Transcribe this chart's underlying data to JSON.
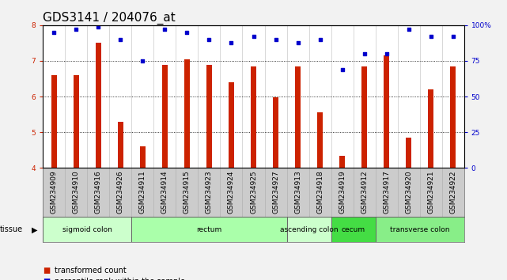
{
  "title": "GDS3141 / 204076_at",
  "samples": [
    "GSM234909",
    "GSM234910",
    "GSM234916",
    "GSM234926",
    "GSM234911",
    "GSM234914",
    "GSM234915",
    "GSM234923",
    "GSM234924",
    "GSM234925",
    "GSM234927",
    "GSM234913",
    "GSM234918",
    "GSM234919",
    "GSM234912",
    "GSM234917",
    "GSM234920",
    "GSM234921",
    "GSM234922"
  ],
  "bar_values": [
    6.6,
    6.6,
    7.5,
    5.3,
    4.6,
    6.9,
    7.05,
    6.9,
    6.4,
    6.85,
    5.98,
    6.85,
    5.55,
    4.35,
    6.85,
    7.15,
    4.85,
    6.2,
    6.85
  ],
  "percentile_values": [
    95,
    97,
    99,
    90,
    75,
    97,
    95,
    90,
    88,
    92,
    90,
    88,
    90,
    69,
    80,
    80,
    97,
    92,
    92
  ],
  "tissue_groups": [
    {
      "label": "sigmoid colon",
      "start": 0,
      "end": 4,
      "color": "#ccffcc"
    },
    {
      "label": "rectum",
      "start": 4,
      "end": 11,
      "color": "#aaffaa"
    },
    {
      "label": "ascending colon",
      "start": 11,
      "end": 13,
      "color": "#ccffcc"
    },
    {
      "label": "cecum",
      "start": 13,
      "end": 15,
      "color": "#44dd44"
    },
    {
      "label": "transverse colon",
      "start": 15,
      "end": 19,
      "color": "#88ee88"
    }
  ],
  "ylim": [
    4,
    8
  ],
  "yticks": [
    4,
    5,
    6,
    7,
    8
  ],
  "ytick_labels_right_pct": [
    0,
    25,
    50,
    75,
    100
  ],
  "bar_color": "#cc2200",
  "dot_color": "#0000cc",
  "plot_bg": "#ffffff",
  "xticklabel_bg": "#cccccc",
  "title_fontsize": 11,
  "tick_fontsize": 6.5,
  "tissue_fontsize": 7
}
